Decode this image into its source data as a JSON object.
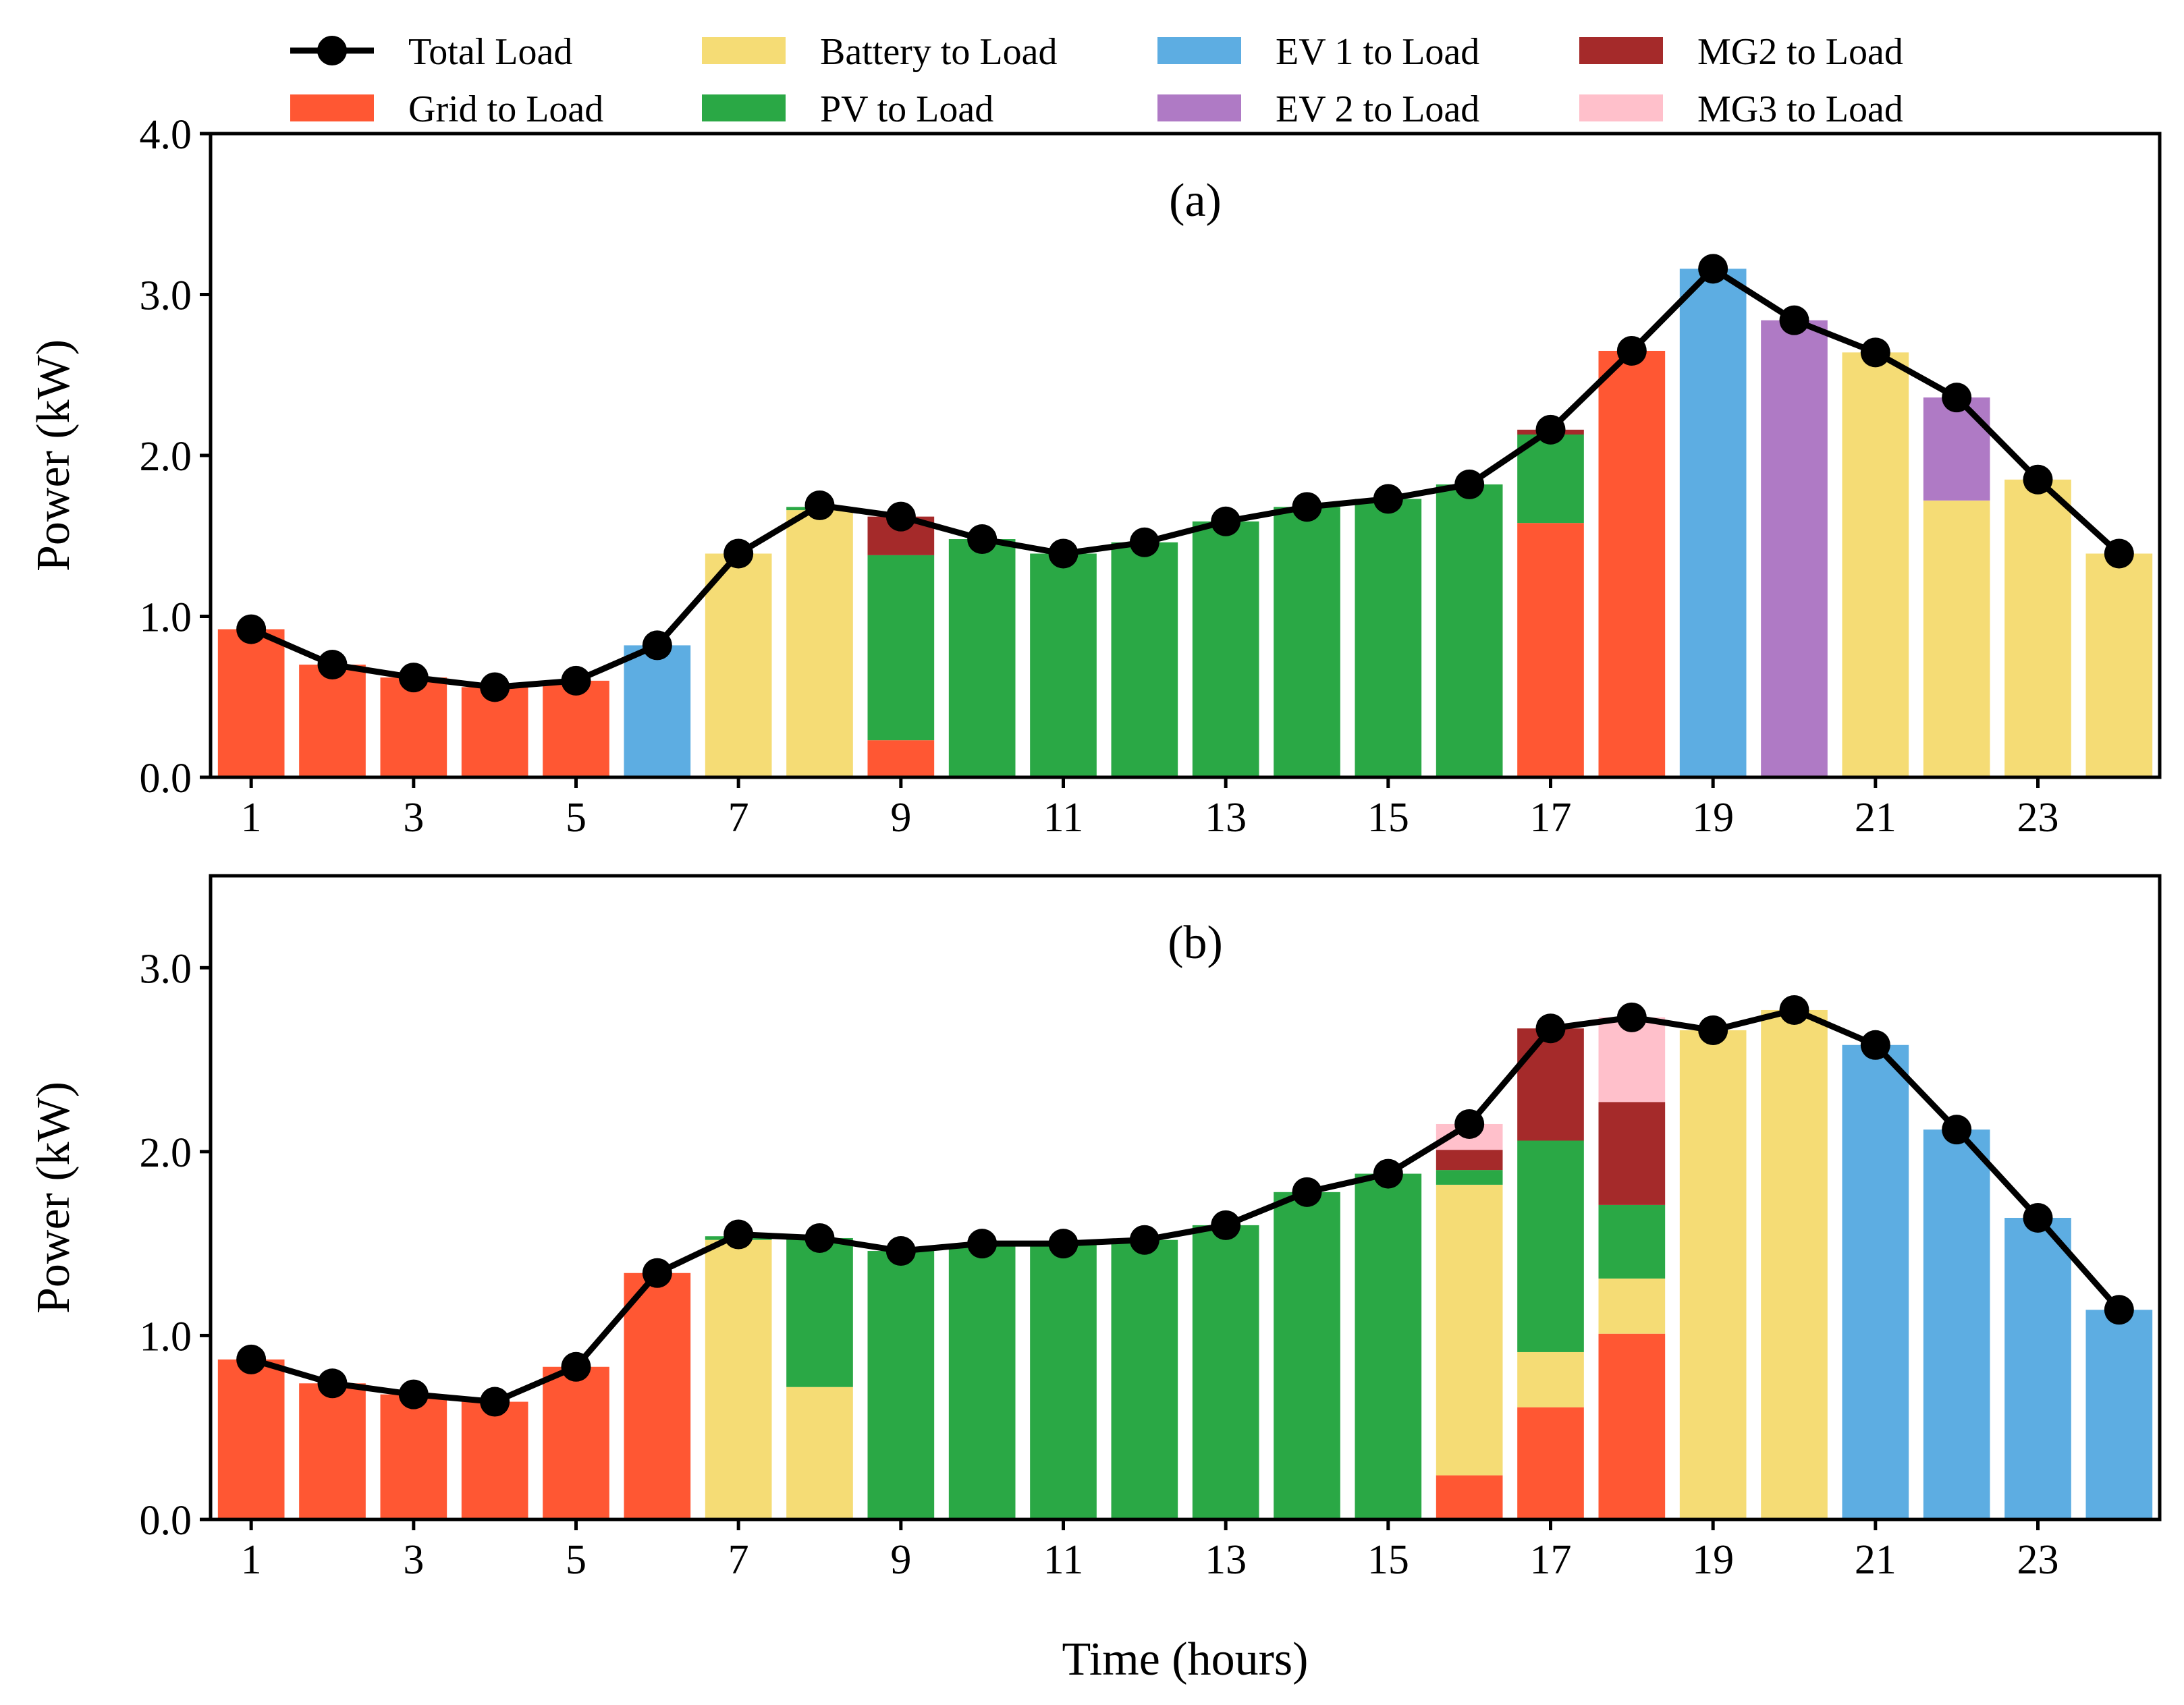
{
  "legend": [
    {
      "key": "total",
      "label": "Total Load",
      "kind": "line",
      "color": "#000000"
    },
    {
      "key": "grid",
      "label": "Grid to Load",
      "kind": "bar",
      "color": "#FF5733"
    },
    {
      "key": "battery",
      "label": "Battery to Load",
      "kind": "bar",
      "color": "#F5DC75"
    },
    {
      "key": "pv",
      "label": "PV to Load",
      "kind": "bar",
      "color": "#2AA845"
    },
    {
      "key": "ev1",
      "label": "EV 1 to Load",
      "kind": "bar",
      "color": "#5DADE2"
    },
    {
      "key": "ev2",
      "label": "EV 2 to Load",
      "kind": "bar",
      "color": "#AF7AC5"
    },
    {
      "key": "mg2",
      "label": "MG2 to Load",
      "kind": "bar",
      "color": "#A52A2A"
    },
    {
      "key": "mg3",
      "label": "MG3 to Load",
      "kind": "bar",
      "color": "#FFC0CB"
    }
  ],
  "chart_data": [
    {
      "type": "bar",
      "stacked": true,
      "panel_label": "(a)",
      "xlabel": "",
      "ylabel": "Power (kW)",
      "ylim": [
        0,
        4.0
      ],
      "yticks": [
        "0.0",
        "1.0",
        "2.0",
        "3.0",
        "4.0"
      ],
      "xticks": [
        "1",
        "3",
        "5",
        "7",
        "9",
        "11",
        "13",
        "15",
        "17",
        "19",
        "21",
        "23"
      ],
      "categories": [
        1,
        2,
        3,
        4,
        5,
        6,
        7,
        8,
        9,
        10,
        11,
        12,
        13,
        14,
        15,
        16,
        17,
        18,
        19,
        20,
        21,
        22,
        23,
        24
      ],
      "series": [
        {
          "name": "Grid to Load",
          "key": "grid",
          "values": [
            0.92,
            0.7,
            0.62,
            0.56,
            0.6,
            0,
            0,
            0,
            0.23,
            0,
            0,
            0,
            0,
            0,
            0,
            0,
            1.58,
            2.65,
            0,
            0,
            0,
            0,
            0,
            0
          ]
        },
        {
          "name": "Battery to Load",
          "key": "battery",
          "values": [
            0,
            0,
            0,
            0,
            0,
            0,
            1.39,
            1.66,
            0,
            0,
            0,
            0,
            0,
            0,
            0,
            0,
            0,
            0,
            0,
            0,
            2.64,
            1.72,
            1.85,
            1.39
          ]
        },
        {
          "name": "PV to Load",
          "key": "pv",
          "values": [
            0,
            0,
            0,
            0,
            0,
            0,
            0,
            0.02,
            1.15,
            1.48,
            1.39,
            1.46,
            1.59,
            1.68,
            1.73,
            1.82,
            0.55,
            0,
            0,
            0,
            0,
            0,
            0,
            0
          ]
        },
        {
          "name": "EV 1 to Load",
          "key": "ev1",
          "values": [
            0,
            0,
            0,
            0,
            0,
            0.82,
            0,
            0,
            0,
            0,
            0,
            0,
            0,
            0,
            0,
            0,
            0,
            0,
            3.16,
            0,
            0,
            0,
            0,
            0
          ]
        },
        {
          "name": "EV 2 to Load",
          "key": "ev2",
          "values": [
            0,
            0,
            0,
            0,
            0,
            0,
            0,
            0,
            0,
            0,
            0,
            0,
            0,
            0,
            0,
            0,
            0,
            0,
            0,
            2.84,
            0,
            0.64,
            0,
            0
          ]
        },
        {
          "name": "MG2 to Load",
          "key": "mg2",
          "values": [
            0,
            0,
            0,
            0,
            0,
            0,
            0,
            0,
            0.24,
            0,
            0,
            0,
            0,
            0,
            0,
            0,
            0.03,
            0,
            0,
            0,
            0,
            0,
            0,
            0
          ]
        },
        {
          "name": "MG3 to Load",
          "key": "mg3",
          "values": [
            0,
            0,
            0,
            0,
            0,
            0,
            0,
            0,
            0,
            0,
            0,
            0,
            0,
            0,
            0,
            0,
            0,
            0,
            0,
            0,
            0,
            0,
            0,
            0
          ]
        }
      ],
      "total_load": [
        0.92,
        0.7,
        0.62,
        0.56,
        0.6,
        0.82,
        1.39,
        1.69,
        1.62,
        1.48,
        1.39,
        1.46,
        1.59,
        1.68,
        1.73,
        1.82,
        2.16,
        2.65,
        3.16,
        2.84,
        2.64,
        2.36,
        1.85,
        1.39
      ]
    },
    {
      "type": "bar",
      "stacked": true,
      "panel_label": "(b)",
      "xlabel": "Time (hours)",
      "ylabel": "Power (kW)",
      "ylim": [
        0,
        3.5
      ],
      "yticks": [
        "0.0",
        "1.0",
        "2.0",
        "3.0"
      ],
      "xticks": [
        "1",
        "3",
        "5",
        "7",
        "9",
        "11",
        "13",
        "15",
        "17",
        "19",
        "21",
        "23"
      ],
      "categories": [
        1,
        2,
        3,
        4,
        5,
        6,
        7,
        8,
        9,
        10,
        11,
        12,
        13,
        14,
        15,
        16,
        17,
        18,
        19,
        20,
        21,
        22,
        23,
        24
      ],
      "series": [
        {
          "name": "Grid to Load",
          "key": "grid",
          "values": [
            0.87,
            0.74,
            0.68,
            0.64,
            0.83,
            1.34,
            0,
            0,
            0,
            0,
            0,
            0,
            0,
            0,
            0,
            0.24,
            0.61,
            1.01,
            0,
            0,
            0,
            0,
            0,
            0
          ]
        },
        {
          "name": "Battery to Load",
          "key": "battery",
          "values": [
            0,
            0,
            0,
            0,
            0,
            0,
            1.52,
            0.72,
            0,
            0,
            0,
            0,
            0,
            0,
            0,
            1.58,
            0.3,
            0.3,
            2.66,
            2.77,
            0,
            0,
            0,
            0
          ]
        },
        {
          "name": "PV to Load",
          "key": "pv",
          "values": [
            0,
            0,
            0,
            0,
            0,
            0,
            0.02,
            0.81,
            1.46,
            1.5,
            1.5,
            1.52,
            1.6,
            1.78,
            1.88,
            0.08,
            1.15,
            0.4,
            0,
            0,
            0,
            0,
            0,
            0
          ]
        },
        {
          "name": "EV 1 to Load",
          "key": "ev1",
          "values": [
            0,
            0,
            0,
            0,
            0,
            0,
            0,
            0,
            0,
            0,
            0,
            0,
            0,
            0,
            0,
            0,
            0,
            0,
            0,
            0,
            2.58,
            2.12,
            1.64,
            1.14
          ]
        },
        {
          "name": "EV 2 to Load",
          "key": "ev2",
          "values": [
            0,
            0,
            0,
            0,
            0,
            0,
            0,
            0,
            0,
            0,
            0,
            0,
            0,
            0,
            0,
            0,
            0,
            0,
            0,
            0,
            0,
            0,
            0,
            0
          ]
        },
        {
          "name": "MG2 to Load",
          "key": "mg2",
          "values": [
            0,
            0,
            0,
            0,
            0,
            0,
            0,
            0,
            0,
            0,
            0,
            0,
            0,
            0,
            0,
            0.11,
            0.61,
            0.56,
            0,
            0,
            0,
            0,
            0,
            0
          ]
        },
        {
          "name": "MG3 to Load",
          "key": "mg3",
          "values": [
            0,
            0,
            0,
            0,
            0,
            0,
            0,
            0,
            0,
            0,
            0,
            0,
            0,
            0,
            0,
            0.14,
            0,
            0.46,
            0,
            0,
            0,
            0,
            0,
            0
          ]
        }
      ],
      "total_load": [
        0.87,
        0.74,
        0.68,
        0.64,
        0.83,
        1.34,
        1.55,
        1.53,
        1.46,
        1.5,
        1.5,
        1.52,
        1.6,
        1.78,
        1.88,
        2.15,
        2.67,
        2.73,
        2.66,
        2.77,
        2.58,
        2.12,
        1.64,
        1.14
      ]
    }
  ]
}
